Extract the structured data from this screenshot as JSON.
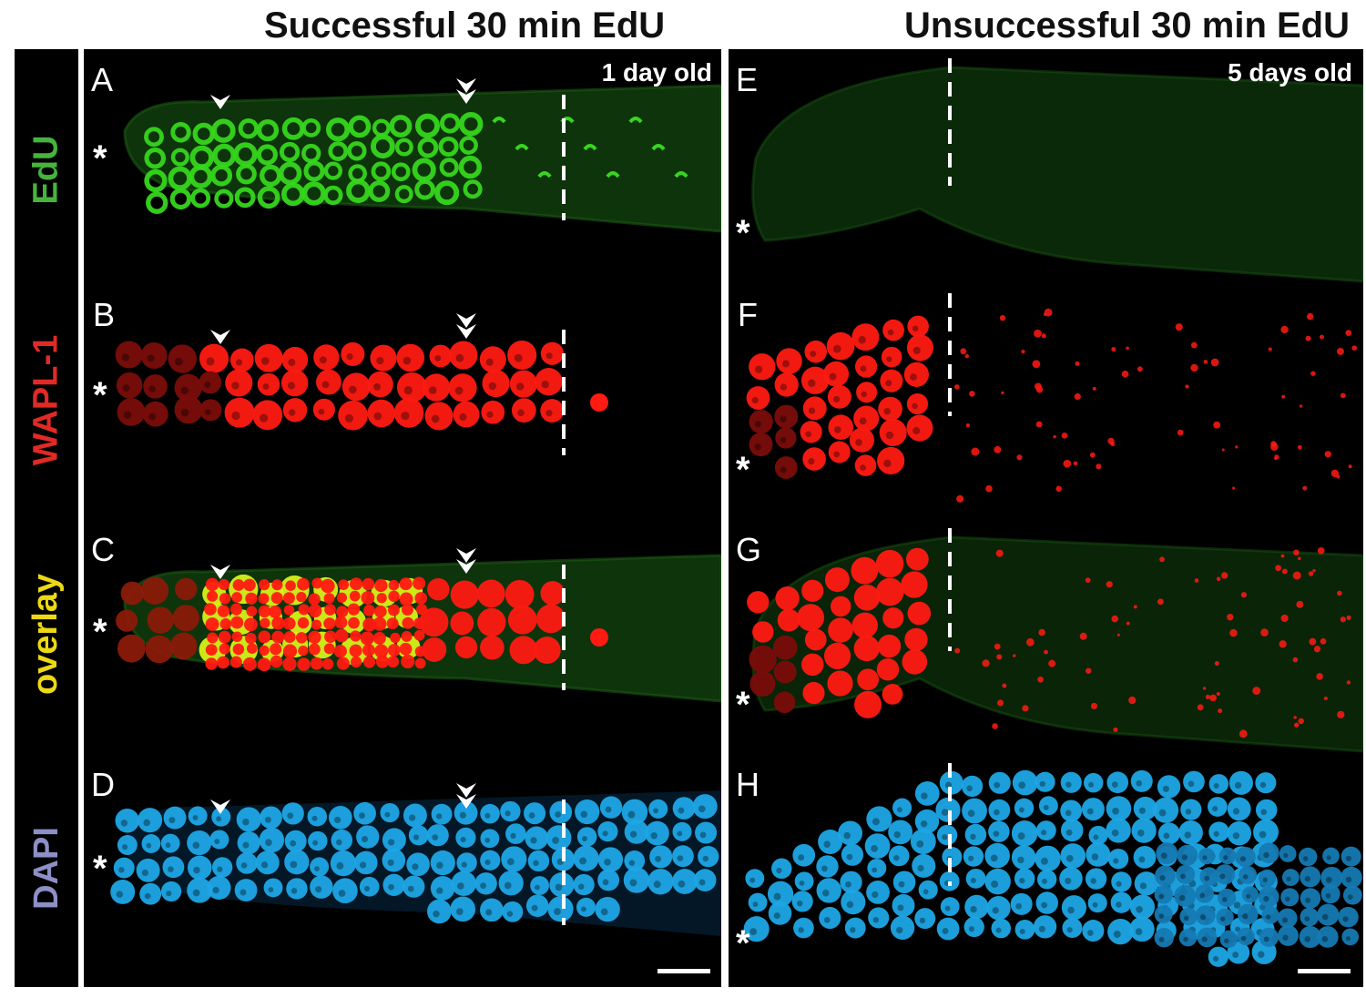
{
  "titles": {
    "left": "Successful 30 min EdU",
    "right": "Unsuccessful 30 min EdU"
  },
  "channels": [
    {
      "label": "EdU",
      "color": "#46b43c"
    },
    {
      "label": "WAPL-1",
      "color": "#e02a26"
    },
    {
      "label": "overlay",
      "color": "#ecd814"
    },
    {
      "label": "DAPI",
      "color": "#8d8fc6"
    }
  ],
  "panels": {
    "left": {
      "letters": [
        "A",
        "B",
        "C",
        "D"
      ],
      "age": "1 day old"
    },
    "right": {
      "letters": [
        "E",
        "F",
        "G",
        "H"
      ],
      "age": "5 days old"
    }
  },
  "asterisk": "*",
  "colors": {
    "edu": "#36d61e",
    "wapl": "#ff1a12",
    "dapi": "#1ea6e6",
    "overlay_yellow": "#d6f21a",
    "background": "#000000"
  },
  "markers": {
    "arrowhead": "arrowhead-icon",
    "double_arrowhead": "double-arrowhead-icon",
    "dashed_line": "dashed-boundary"
  }
}
